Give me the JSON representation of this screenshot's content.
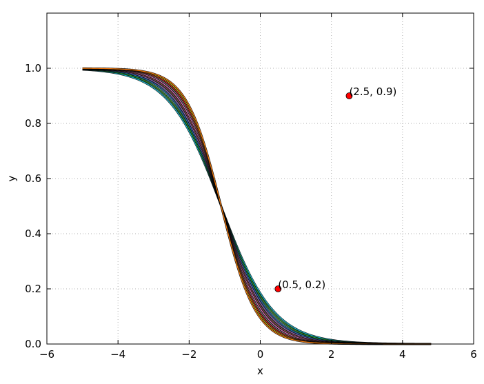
{
  "chart_data": {
    "type": "line",
    "title": "",
    "xlabel": "x",
    "ylabel": "y",
    "xlim": [
      -6,
      6
    ],
    "ylim": [
      0.0,
      1.2
    ],
    "xticks": [
      -6,
      -4,
      -2,
      0,
      2,
      4,
      6
    ],
    "xtick_labels": [
      "−6",
      "−4",
      "−2",
      "0",
      "2",
      "4",
      "6"
    ],
    "yticks": [
      0.0,
      0.2,
      0.4,
      0.6,
      0.8,
      1.0
    ],
    "ytick_labels": [
      "0.0",
      "0.2",
      "0.4",
      "0.6",
      "0.8",
      "1.0"
    ],
    "grid": true,
    "grid_style": "dotted",
    "curve_family": {
      "description": "bundle of decreasing sigmoid curves y = 1/(1+exp(k*(x+1.1)))",
      "x_range": [
        -5,
        4.8
      ],
      "center_x": -1.1,
      "steepness_values": [
        1.35,
        1.42,
        1.5,
        1.58,
        1.66,
        1.74,
        1.82,
        1.9,
        1.98,
        2.06
      ],
      "colors": [
        "#17becf",
        "#2ca02c",
        "#1f77b4",
        "#9467bd",
        "#8c564b",
        "#e377c2",
        "#7f7f7f",
        "#d62728",
        "#bcbd22",
        "#ff7f0e"
      ],
      "outline_color": "#000000"
    },
    "points": [
      {
        "x": 0.5,
        "y": 0.2,
        "label": "(0.5, 0.2)",
        "color": "#ff0000"
      },
      {
        "x": 2.5,
        "y": 0.9,
        "label": "(2.5, 0.9)",
        "color": "#ff0000"
      }
    ]
  }
}
